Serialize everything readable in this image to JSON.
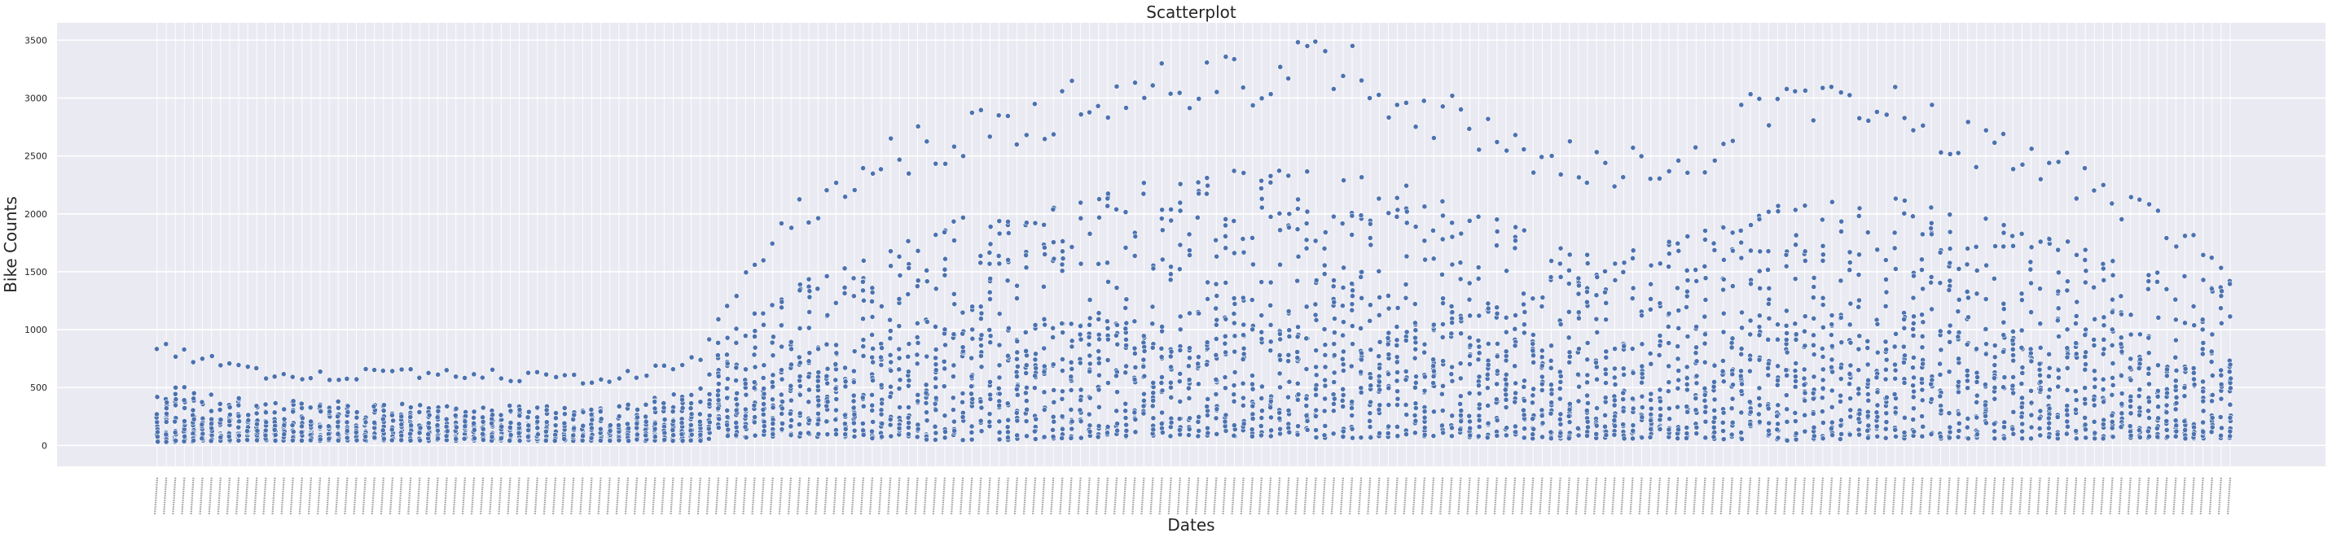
{
  "chart_data": {
    "type": "scatter",
    "title": "Scatterplot",
    "xlabel": "Dates",
    "ylabel": "Bike Counts",
    "ylim": [
      -180,
      3650
    ],
    "y_ticks": [
      0,
      500,
      1000,
      1500,
      2000,
      2500,
      3000,
      3500
    ],
    "grid": true,
    "legend": "none",
    "x_tick_labels_unreadable": true,
    "x_category_count": 230,
    "colors": {
      "background": "#eaeaf2",
      "grid": "#ffffff",
      "point": "#4c72b0",
      "point_edge": "#ffffff",
      "text": "#262626"
    },
    "profile": {
      "description_of_values": "approximate per-date envelope of bike counts (lower bulk bound, upper bulk bound, max outlier) read from the plot",
      "x_index": [
        0,
        10,
        20,
        30,
        40,
        50,
        60,
        62,
        70,
        80,
        90,
        100,
        110,
        120,
        130,
        140,
        150,
        160,
        170,
        180,
        190,
        200,
        210,
        220,
        229
      ],
      "low": [
        30,
        40,
        40,
        40,
        40,
        40,
        40,
        60,
        80,
        60,
        40,
        60,
        80,
        80,
        60,
        80,
        60,
        60,
        60,
        40,
        60,
        60,
        60,
        60,
        60
      ],
      "high": [
        550,
        400,
        380,
        350,
        350,
        330,
        500,
        900,
        1400,
        1700,
        2000,
        2100,
        2300,
        2400,
        2450,
        2250,
        1900,
        1600,
        1900,
        2100,
        2200,
        2000,
        1800,
        1500,
        1500
      ],
      "max": [
        930,
        680,
        650,
        690,
        650,
        600,
        820,
        1250,
        2100,
        2700,
        2900,
        3150,
        3400,
        3400,
        3560,
        3150,
        2800,
        2550,
        2700,
        3300,
        3250,
        2800,
        2600,
        2100,
        1650
      ]
    },
    "points_per_date": 20,
    "seed": 20231
  }
}
